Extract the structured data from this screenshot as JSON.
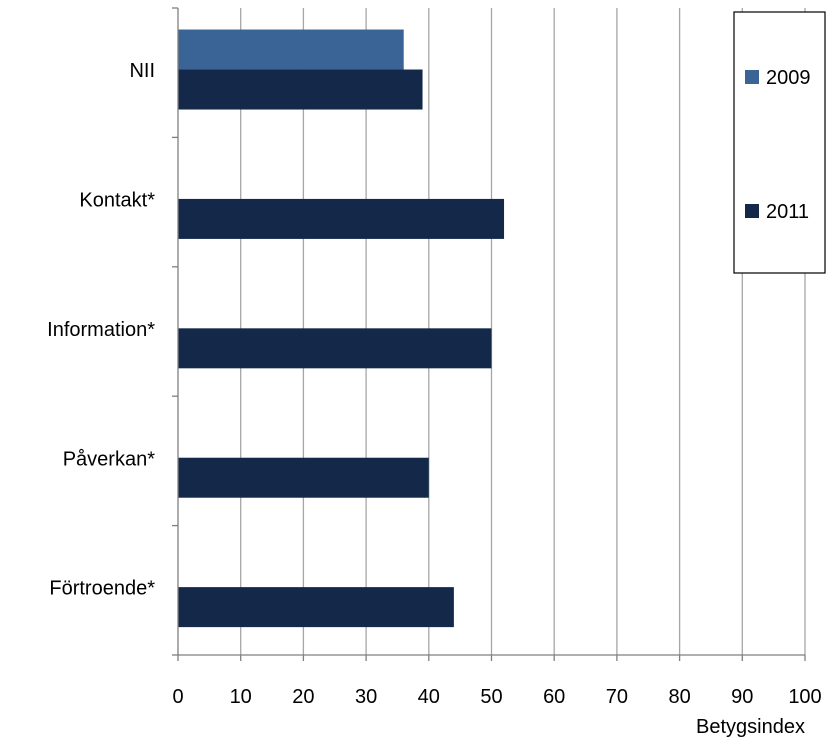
{
  "chart_data": {
    "type": "bar",
    "orientation": "horizontal",
    "categories": [
      "NII",
      "Kontakt*",
      "Information*",
      "Påverkan*",
      "Förtroende*"
    ],
    "series": [
      {
        "name": "2009",
        "color": "#3A6496",
        "values": [
          36,
          null,
          null,
          null,
          null
        ]
      },
      {
        "name": "2011",
        "color": "#14294A",
        "values": [
          39,
          52,
          50,
          40,
          44
        ]
      }
    ],
    "xlabel": "Betygsindex",
    "xlim": [
      0,
      100
    ],
    "xticks": [
      0,
      10,
      20,
      30,
      40,
      50,
      60,
      70,
      80,
      90,
      100
    ],
    "grid": "vertical",
    "legend": "right",
    "gridline_color": "#A6A6A6"
  }
}
